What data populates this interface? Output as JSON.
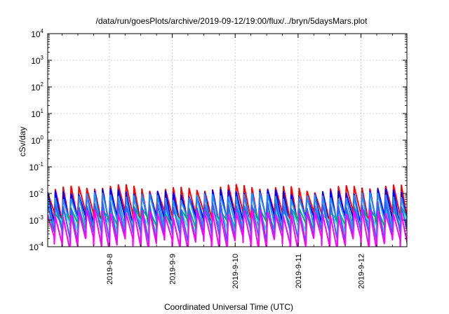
{
  "chart_data": {
    "type": "line",
    "title": "/data/run/goesPlots/archive/2019-09-12/19:00/flux/../bryn/5daysMars.plot",
    "xlabel": "Coordinated Universal Time (UTC)",
    "ylabel": "cSv/day",
    "yscale": "log",
    "ylim": [
      0.0001,
      10000
    ],
    "y_ticks": [
      {
        "base": "10",
        "exp": "4"
      },
      {
        "base": "10",
        "exp": "3"
      },
      {
        "base": "10",
        "exp": "2"
      },
      {
        "base": "10",
        "exp": "1"
      },
      {
        "base": "10",
        "exp": "0"
      },
      {
        "base": "10",
        "exp": "-1"
      },
      {
        "base": "10",
        "exp": "-2"
      },
      {
        "base": "10",
        "exp": "-3"
      },
      {
        "base": "10",
        "exp": "-4"
      }
    ],
    "x_ticks": [
      "2019-9-8",
      "2019-9-9",
      "2019-9-10",
      "2019-9-11",
      "2019-9-12"
    ],
    "xlim_days": [
      -0.98,
      4.73
    ],
    "grid": true,
    "legend": "none",
    "sawtooth_period_days": 0.125,
    "series": [
      {
        "color": "#ff0000",
        "peak": 0.016,
        "trough": 0.0012
      },
      {
        "color": "#0000ff",
        "peak": 0.011,
        "trough": 0.0008
      },
      {
        "color": "#1e90ff",
        "peak": 0.008,
        "trough": 0.0006
      },
      {
        "color": "#00b050",
        "peak": 0.0025,
        "trough": 0.0006
      },
      {
        "color": "#40e0d0",
        "peak": 0.0022,
        "trough": 0.0005
      },
      {
        "color": "#3060ff",
        "peak": 0.0035,
        "trough": 0.00025
      },
      {
        "color": "#ff00ff",
        "peak": 0.0018,
        "trough": 0.00013
      }
    ]
  }
}
